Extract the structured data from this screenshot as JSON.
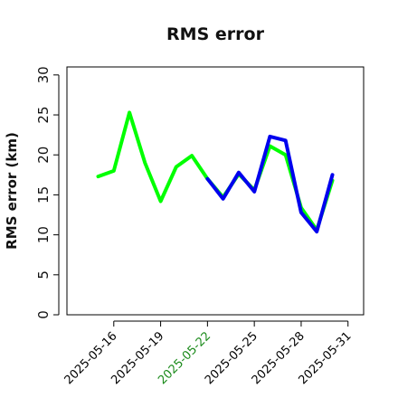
{
  "chart_data": {
    "type": "line",
    "title": "RMS error",
    "ylabel": "RMS error (km)",
    "xlabel": "",
    "ylim": [
      0,
      31
    ],
    "xlim": [
      "2025-05-13",
      "2025-06-01"
    ],
    "yticks": [
      0,
      5,
      10,
      15,
      20,
      25,
      30
    ],
    "xticks": [
      {
        "label": "2025-05-16",
        "color": "#000000"
      },
      {
        "label": "2025-05-19",
        "color": "#000000"
      },
      {
        "label": "2025-05-22",
        "color": "#1a8a1a"
      },
      {
        "label": "2025-05-25",
        "color": "#000000"
      },
      {
        "label": "2025-05-28",
        "color": "#000000"
      },
      {
        "label": "2025-05-31",
        "color": "#000000"
      }
    ],
    "grid": false,
    "legend": "none",
    "series": [
      {
        "color": "#00ff00",
        "x": [
          "2025-05-15",
          "2025-05-16",
          "2025-05-17",
          "2025-05-18",
          "2025-05-19",
          "2025-05-20",
          "2025-05-21",
          "2025-05-22",
          "2025-05-23",
          "2025-05-24",
          "2025-05-25",
          "2025-05-26",
          "2025-05-27",
          "2025-05-28",
          "2025-05-29",
          "2025-05-30"
        ],
        "values": [
          17.3,
          18.0,
          25.3,
          19.0,
          14.2,
          18.5,
          19.9,
          17.0,
          14.7,
          17.6,
          15.6,
          21.1,
          20.0,
          13.4,
          10.6,
          16.8
        ]
      },
      {
        "color": "#0000ee",
        "x": [
          "2025-05-22",
          "2025-05-23",
          "2025-05-24",
          "2025-05-25",
          "2025-05-26",
          "2025-05-27",
          "2025-05-28",
          "2025-05-29",
          "2025-05-30"
        ],
        "values": [
          17.0,
          14.5,
          17.8,
          15.4,
          22.3,
          21.8,
          12.8,
          10.4,
          17.5
        ]
      }
    ]
  }
}
